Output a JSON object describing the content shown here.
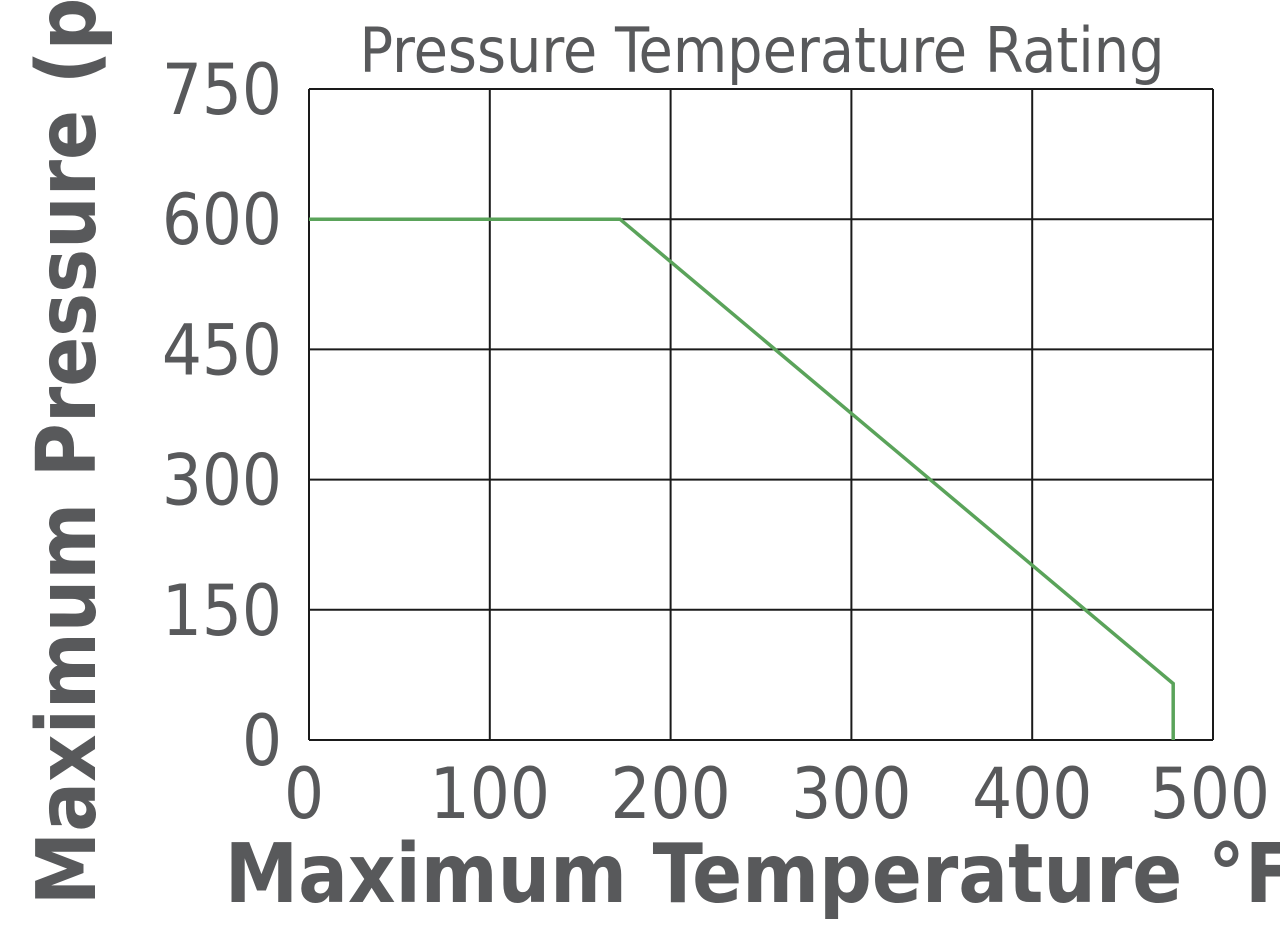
{
  "chart_data": {
    "type": "line",
    "title": "Pressure Temperature Rating",
    "xlabel": "Maximum Temperature °F",
    "ylabel": "Maximum Pressure (psi)",
    "xlim": [
      0,
      500
    ],
    "ylim": [
      0,
      750
    ],
    "x_ticks": [
      "0",
      "100",
      "200",
      "300",
      "400",
      "500"
    ],
    "y_ticks": [
      "0",
      "150",
      "300",
      "450",
      "600",
      "750"
    ],
    "grid": true,
    "series": [
      {
        "color": "#5aa35a",
        "points": [
          {
            "x": 0,
            "y": 600
          },
          {
            "x": 172,
            "y": 600
          },
          {
            "x": 478,
            "y": 65
          },
          {
            "x": 478,
            "y": 0
          }
        ]
      }
    ]
  }
}
